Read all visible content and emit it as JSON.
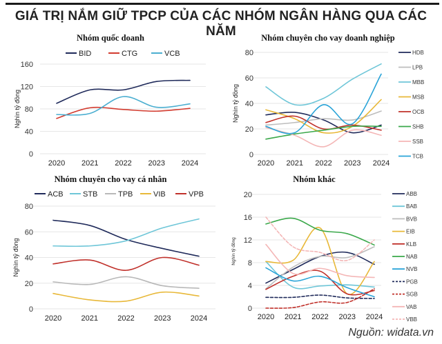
{
  "title": "GIÁ TRỊ NẮM GIỮ TPCP CỦA CÁC NHÓM NGÂN HÀNG QUA CÁC NĂM",
  "source": "Nguồn: widata.vn",
  "chart_data": [
    {
      "type": "line",
      "title": "Nhóm quốc doanh",
      "ylabel": "Nghìn tỷ đồng",
      "xlabel": "",
      "categories": [
        "2020",
        "2021",
        "2022",
        "2023",
        "2024"
      ],
      "ylim": [
        0,
        160
      ],
      "yticks": [
        0,
        40,
        80,
        120,
        160
      ],
      "grid": true,
      "legend": "top",
      "series": [
        {
          "name": "BID",
          "color": "#1f2a5a",
          "dash": false,
          "values": [
            90,
            114,
            114,
            129,
            131
          ]
        },
        {
          "name": "CTG",
          "color": "#d23a2e",
          "dash": false,
          "values": [
            63,
            82,
            79,
            76,
            81
          ]
        },
        {
          "name": "VCB",
          "color": "#4aaed0",
          "dash": false,
          "values": [
            70,
            72,
            102,
            83,
            89
          ]
        }
      ]
    },
    {
      "type": "line",
      "title": "Nhóm chuyên cho vay doanh nghiệp",
      "ylabel": "Nghìn tỷ đồng",
      "xlabel": "",
      "categories": [
        "2020",
        "2021",
        "2022",
        "2023",
        "2024"
      ],
      "ylim": [
        0,
        80
      ],
      "yticks": [
        0,
        20,
        40,
        60,
        80
      ],
      "grid": true,
      "legend": "right",
      "series": [
        {
          "name": "HDB",
          "color": "#1f2a5a",
          "dash": false,
          "values": [
            31,
            33,
            27,
            17,
            23
          ]
        },
        {
          "name": "LPB",
          "color": "#bdbdbd",
          "dash": false,
          "values": [
            23,
            25,
            28,
            27,
            34
          ]
        },
        {
          "name": "MBB",
          "color": "#6ec6d8",
          "dash": false,
          "values": [
            53,
            39,
            44,
            59,
            71
          ]
        },
        {
          "name": "MSB",
          "color": "#e8b838",
          "dash": false,
          "values": [
            35,
            28,
            17,
            22,
            43
          ]
        },
        {
          "name": "OCB",
          "color": "#c0302a",
          "dash": false,
          "values": [
            25,
            30,
            20,
            23,
            19
          ]
        },
        {
          "name": "SHB",
          "color": "#3aa84a",
          "dash": false,
          "values": [
            12,
            16,
            19,
            22,
            22
          ]
        },
        {
          "name": "SSB",
          "color": "#f4b6b6",
          "dash": false,
          "values": [
            21,
            15,
            6,
            19,
            15
          ]
        },
        {
          "name": "TCB",
          "color": "#2aa4d8",
          "dash": false,
          "values": [
            22,
            17,
            39,
            24,
            63
          ]
        }
      ]
    },
    {
      "type": "line",
      "title": "Nhóm chuyên cho vay cá nhân",
      "ylabel": "Nghìn tỷ đồng",
      "xlabel": "",
      "categories": [
        "2020",
        "2021",
        "2022",
        "2023",
        "2024"
      ],
      "ylim": [
        0,
        80
      ],
      "yticks": [
        0,
        20,
        40,
        60,
        80
      ],
      "grid": true,
      "legend": "top",
      "series": [
        {
          "name": "ACB",
          "color": "#1f2a5a",
          "dash": false,
          "values": [
            69,
            65,
            54,
            47,
            41
          ]
        },
        {
          "name": "STB",
          "color": "#6ec6d8",
          "dash": false,
          "values": [
            49,
            49,
            53,
            63,
            70
          ]
        },
        {
          "name": "TPB",
          "color": "#b8b8b8",
          "dash": false,
          "values": [
            21,
            19,
            25,
            18,
            16
          ]
        },
        {
          "name": "VIB",
          "color": "#e8b838",
          "dash": false,
          "values": [
            12,
            7,
            6,
            13,
            10
          ]
        },
        {
          "name": "VPB",
          "color": "#c0302a",
          "dash": false,
          "values": [
            35,
            38,
            30,
            40,
            34
          ]
        }
      ]
    },
    {
      "type": "line",
      "title": "Nhóm khác",
      "ylabel": "Nghìn tỷ đồng",
      "xlabel": "",
      "categories": [
        "2020",
        "2021",
        "2022",
        "2023",
        "2024"
      ],
      "ylim": [
        0,
        20
      ],
      "yticks": [
        0,
        4,
        8,
        12,
        16,
        20
      ],
      "grid": true,
      "legend": "right",
      "series": [
        {
          "name": "ABB",
          "color": "#1f2a5a",
          "dash": false,
          "values": [
            4.4,
            6.8,
            9.1,
            9.8,
            7.7
          ]
        },
        {
          "name": "BAB",
          "color": "#6ec6d8",
          "dash": false,
          "values": [
            8.2,
            3.7,
            3.9,
            4.1,
            3.7
          ]
        },
        {
          "name": "BVB",
          "color": "#bdbdbd",
          "dash": false,
          "values": [
            3.4,
            7.2,
            9.1,
            8.9,
            10.8
          ]
        },
        {
          "name": "EIB",
          "color": "#e8b838",
          "dash": false,
          "values": [
            8.2,
            8.4,
            14.1,
            2.5,
            8.2
          ]
        },
        {
          "name": "KLB",
          "color": "#c0302a",
          "dash": false,
          "values": [
            3.3,
            5.6,
            6.5,
            2.5,
            3.1
          ]
        },
        {
          "name": "NAB",
          "color": "#3aa84a",
          "dash": false,
          "values": [
            14.8,
            15.8,
            13.7,
            13.1,
            11.1
          ]
        },
        {
          "name": "NVB",
          "color": "#2aa4d8",
          "dash": false,
          "values": [
            7.1,
            4.8,
            5.6,
            3.6,
            2.0
          ]
        },
        {
          "name": "PGB",
          "color": "#1f2a5a",
          "dash": true,
          "values": [
            1.9,
            1.9,
            2.3,
            1.8,
            1.7
          ]
        },
        {
          "name": "SGB",
          "color": "#c0302a",
          "dash": true,
          "values": [
            0.0,
            0.1,
            1.1,
            1.0,
            3.4
          ]
        },
        {
          "name": "VAB",
          "color": "#f4b6b6",
          "dash": false,
          "values": [
            11.2,
            6.1,
            7.0,
            5.7,
            5.4
          ]
        },
        {
          "name": "VBB",
          "color": "#f4b6b6",
          "dash": true,
          "values": [
            16.0,
            10.8,
            9.8,
            8.4,
            12.0
          ]
        }
      ]
    }
  ]
}
